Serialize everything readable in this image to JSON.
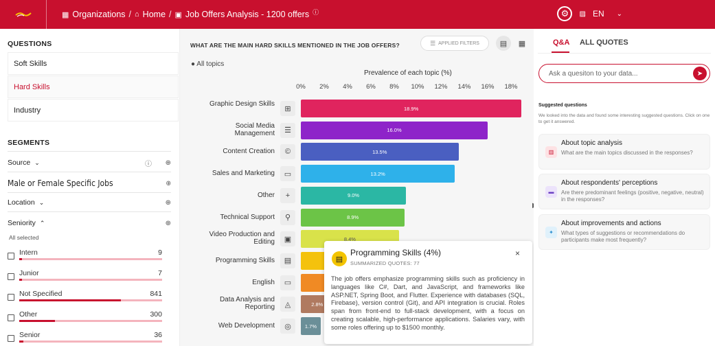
{
  "header": {
    "breadcrumb": [
      "Organizations",
      "Home",
      "Job Offers Analysis - 1200 offers"
    ],
    "language": "EN"
  },
  "questions": {
    "title": "QUESTIONS",
    "items": [
      "Soft Skills",
      "Hard Skills",
      "Industry"
    ],
    "active": "Hard Skills"
  },
  "segments": {
    "title": "SEGMENTS",
    "source_label": "Source",
    "gender_label": "Male or Female Specific Jobs",
    "location_label": "Location",
    "seniority_label": "Seniority",
    "all_selected": "All selected",
    "seniority_items": [
      {
        "label": "Intern",
        "count": "9",
        "fill": 0.02
      },
      {
        "label": "Junior",
        "count": "7",
        "fill": 0.02
      },
      {
        "label": "Not Specified",
        "count": "841",
        "fill": 0.71
      },
      {
        "label": "Other",
        "count": "300",
        "fill": 0.25
      },
      {
        "label": "Senior",
        "count": "36",
        "fill": 0.03
      }
    ]
  },
  "center": {
    "question_title": "WHAT ARE THE MAIN HARD SKILLS MENTIONED IN THE JOB OFFERS?",
    "applied_filters": "APPLIED FILTERS",
    "all_topics": "All topics"
  },
  "chart_data": {
    "type": "bar",
    "orientation": "horizontal",
    "xlabel": "Prevalence of each topic (%)",
    "xlim": [
      0,
      19
    ],
    "ticks": [
      "0%",
      "2%",
      "4%",
      "6%",
      "8%",
      "10%",
      "12%",
      "14%",
      "16%",
      "18%"
    ],
    "categories": [
      "Graphic Design Skills",
      "Social Media Management",
      "Content Creation",
      "Sales and Marketing",
      "Other",
      "Technical Support",
      "Video Production and Editing",
      "Programming Skills",
      "English",
      "Data Analysis and Reporting",
      "Web Development"
    ],
    "values": [
      18.9,
      16.0,
      13.5,
      13.2,
      9.0,
      8.9,
      8.4,
      4.0,
      3.6,
      2.8,
      1.7
    ],
    "labels": [
      "18.9%",
      "16.0%",
      "13.5%",
      "13.2%",
      "9.0%",
      "8.9%",
      "8.4%",
      "4",
      "3.6",
      "2.8%",
      "1.7%"
    ],
    "colors": [
      "#e0245e",
      "#8e24c9",
      "#4a5fc1",
      "#2eb1ea",
      "#2bb7a4",
      "#6cc447",
      "#d9e24a",
      "#f4c20d",
      "#f08a24",
      "#b07a60",
      "#6b8f98"
    ]
  },
  "tooltip": {
    "title": "Programming Skills (4%)",
    "subtitle": "SUMMARIZED QUOTES: 77",
    "close": "×",
    "body": "The job offers emphasize programming skills such as proficiency in languages like C#, Dart, and JavaScript, and frameworks like ASP.NET, Spring Boot, and Flutter. Experience with databases (SQL, Firebase), version control (Git), and API integration is crucial. Roles span from front-end to full-stack development, with a focus on creating scalable, high-performance applications. Salaries vary, with some roles offering up to $1500 monthly."
  },
  "qa": {
    "tab_qa": "Q&A",
    "tab_quotes": "ALL QUOTES",
    "placeholder": "Ask a quesiton to your data...",
    "suggested_title": "Suggested questions",
    "suggested_desc": "We looked into the data and found some interesting suggested questions. Click on one to get it answered.",
    "cards": [
      {
        "title": "About topic analysis",
        "text": "What are the main topics discussed in the responses?",
        "icon_bg": "#fde2e4",
        "icon_color": "#c8102e"
      },
      {
        "title": "About respondents' perceptions",
        "text": "Are there predominant feelings (positive, negative, neutral) in the responses?",
        "icon_bg": "#ece3fb",
        "icon_color": "#6a3fc2"
      },
      {
        "title": "About improvements and actions",
        "text": "What types of suggestions or recommendations do participants make most frequently?",
        "icon_bg": "#e0f1fb",
        "icon_color": "#2b8fd0"
      }
    ]
  }
}
